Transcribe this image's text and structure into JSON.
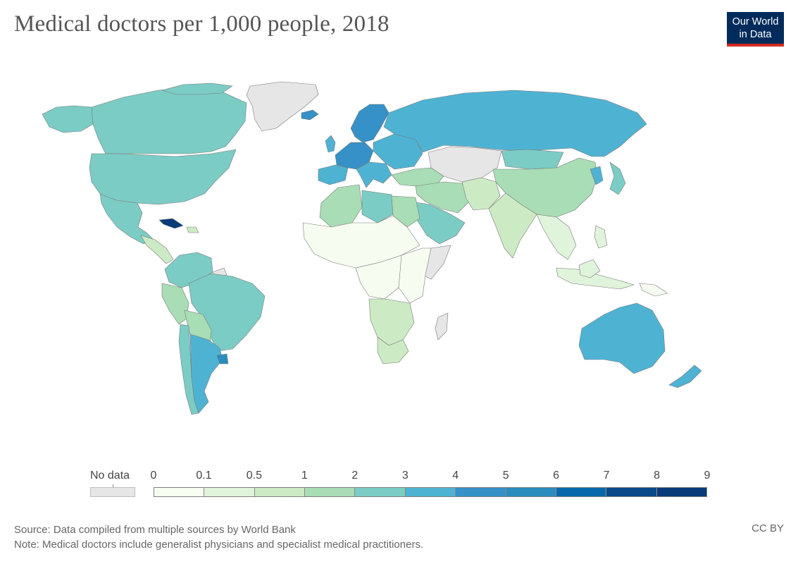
{
  "header": {
    "title": "Medical doctors per 1,000 people, 2018"
  },
  "logo": {
    "line1": "Our World",
    "line2": "in Data",
    "bg_color": "#002b5b",
    "accent_color": "#d42b21"
  },
  "legend": {
    "no_data_label": "No data",
    "no_data_color": "#e6e6e6",
    "tick_labels": [
      "0",
      "0.1",
      "0.5",
      "1",
      "2",
      "3",
      "4",
      "5",
      "6",
      "7",
      "8",
      "9"
    ],
    "bins": [
      {
        "from": "0",
        "to": "0.1",
        "color": "#f7fcf0"
      },
      {
        "from": "0.1",
        "to": "0.5",
        "color": "#e0f3db"
      },
      {
        "from": "0.5",
        "to": "1",
        "color": "#ccebc5"
      },
      {
        "from": "1",
        "to": "2",
        "color": "#a8ddb5"
      },
      {
        "from": "2",
        "to": "3",
        "color": "#7bccc4"
      },
      {
        "from": "3",
        "to": "4",
        "color": "#4eb3d3"
      },
      {
        "from": "4",
        "to": "5",
        "color": "#3591c7"
      },
      {
        "from": "5",
        "to": "6",
        "color": "#2b8cbe"
      },
      {
        "from": "6",
        "to": "7",
        "color": "#0868ac"
      },
      {
        "from": "7",
        "to": "8",
        "color": "#084a8a"
      },
      {
        "from": "8",
        "to": "9",
        "color": "#083b78"
      }
    ]
  },
  "map": {
    "regions": [
      {
        "name": "Canada",
        "bin": 4
      },
      {
        "name": "United States",
        "bin": 4
      },
      {
        "name": "Mexico",
        "bin": 4
      },
      {
        "name": "Greenland",
        "bin": -1
      },
      {
        "name": "Cuba",
        "bin": 10
      },
      {
        "name": "Central America",
        "bin": 2
      },
      {
        "name": "Colombia & Venezuela",
        "bin": 4
      },
      {
        "name": "Brazil",
        "bin": 4
      },
      {
        "name": "Peru",
        "bin": 3
      },
      {
        "name": "Bolivia & Paraguay",
        "bin": 3
      },
      {
        "name": "Argentina",
        "bin": 5
      },
      {
        "name": "Uruguay",
        "bin": 7
      },
      {
        "name": "Chile",
        "bin": 4
      },
      {
        "name": "Iceland",
        "bin": 6
      },
      {
        "name": "Scandinavia",
        "bin": 6
      },
      {
        "name": "United Kingdom",
        "bin": 5
      },
      {
        "name": "Western Europe",
        "bin": 6
      },
      {
        "name": "Spain & Portugal",
        "bin": 5
      },
      {
        "name": "Eastern Europe",
        "bin": 5
      },
      {
        "name": "Russia",
        "bin": 5
      },
      {
        "name": "Kazakhstan & Central Asia",
        "bin": -1
      },
      {
        "name": "Mongolia",
        "bin": 4
      },
      {
        "name": "China",
        "bin": 3
      },
      {
        "name": "Japan",
        "bin": 4
      },
      {
        "name": "Turkey & Caucasus",
        "bin": 3
      },
      {
        "name": "Iran & Middle East",
        "bin": 3
      },
      {
        "name": "Arabian Peninsula",
        "bin": 4
      },
      {
        "name": "Afghanistan & Pakistan",
        "bin": 2
      },
      {
        "name": "India",
        "bin": 2
      },
      {
        "name": "Southeast Asia",
        "bin": 1
      },
      {
        "name": "Indonesia",
        "bin": 1
      },
      {
        "name": "Papua New Guinea",
        "bin": 0
      },
      {
        "name": "North Africa (Algeria, Egypt)",
        "bin": 3
      },
      {
        "name": "Libya",
        "bin": 4
      },
      {
        "name": "Sahel & West Africa",
        "bin": 0
      },
      {
        "name": "Central Africa",
        "bin": 0
      },
      {
        "name": "East Africa",
        "bin": 0
      },
      {
        "name": "Somalia",
        "bin": -1
      },
      {
        "name": "Southern Africa",
        "bin": 2
      },
      {
        "name": "South Africa",
        "bin": 2
      },
      {
        "name": "Madagascar",
        "bin": -1
      },
      {
        "name": "Australia",
        "bin": 5
      },
      {
        "name": "New Zealand",
        "bin": 5
      }
    ]
  },
  "footer": {
    "source": "Source: Data compiled from multiple sources by World Bank",
    "note": "Note: Medical doctors include generalist physicians and specialist medical practitioners.",
    "license": "CC BY"
  }
}
